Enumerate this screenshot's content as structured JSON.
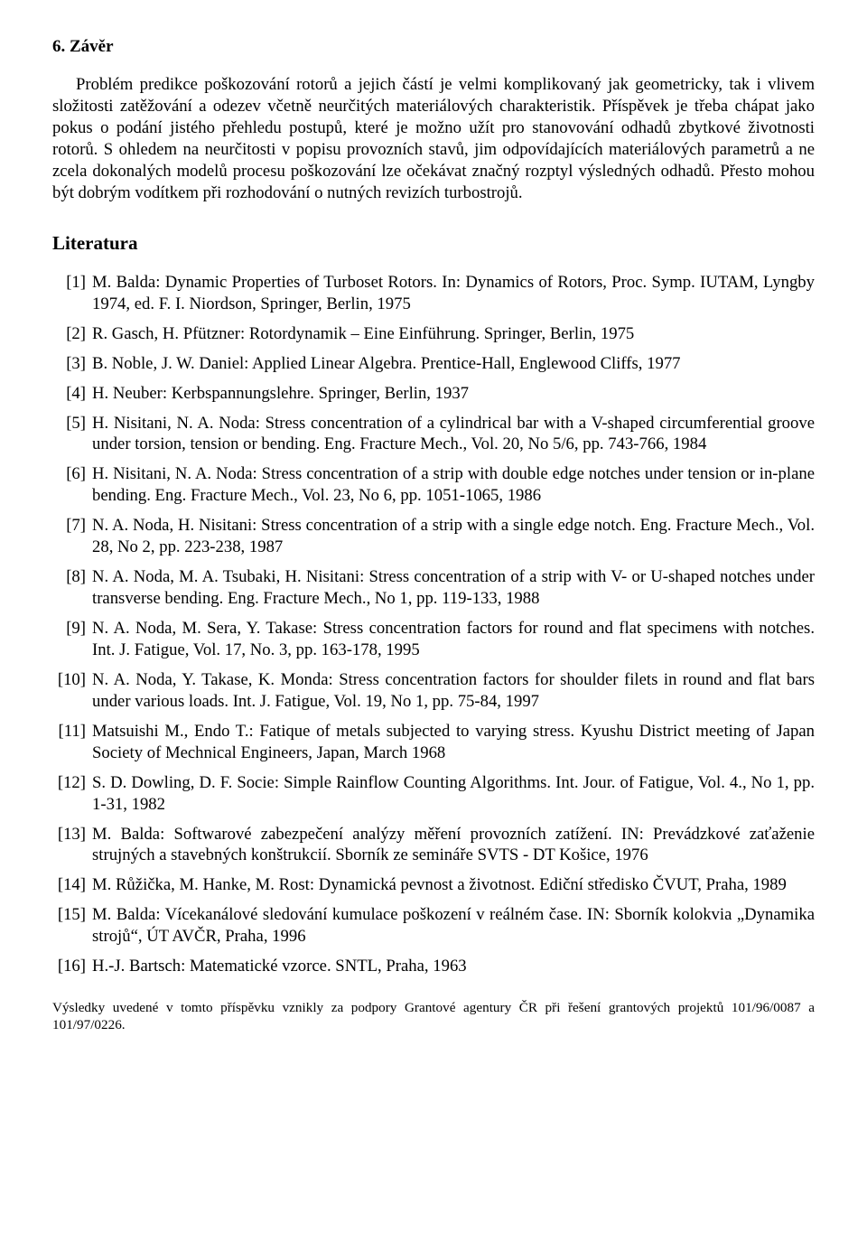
{
  "section": {
    "heading": "6. Závěr",
    "paragraph": "Problém predikce poškozování rotorů a jejich částí je velmi komplikovaný jak geometricky, tak i vlivem složitosti zatěžování a odezev včetně neurčitých materiálových charakteristik. Příspěvek je třeba chápat jako pokus o podání jistého přehledu postupů, které je možno užít pro stanovování odhadů zbytkové životnosti rotorů. S ohledem na neurčitosti v popisu provozních stavů, jim odpovídajících materiálových parametrů a ne zcela dokonalých modelů procesu poškozování lze očekávat značný rozptyl výsledných odhadů. Přesto mohou být dobrým vodítkem při rozhodování o nutných revizích turbostrojů."
  },
  "literature": {
    "heading": "Literatura",
    "items": [
      {
        "n": "[1]",
        "t": "M. Balda: Dynamic Properties of Turboset Rotors. In: Dynamics of Rotors, Proc. Symp. IUTAM, Lyngby 1974, ed. F. I. Niordson, Springer, Berlin, 1975"
      },
      {
        "n": "[2]",
        "t": "R. Gasch, H. Pfützner: Rotordynamik – Eine Einführung. Springer, Berlin, 1975"
      },
      {
        "n": "[3]",
        "t": "B. Noble, J. W. Daniel: Applied Linear Algebra. Prentice-Hall, Englewood Cliffs, 1977"
      },
      {
        "n": "[4]",
        "t": "H. Neuber: Kerbspannungslehre. Springer, Berlin, 1937"
      },
      {
        "n": "[5]",
        "t": "H. Nisitani, N. A. Noda: Stress concentration of a cylindrical bar with a V-shaped circumferential groove under torsion, tension or bending. Eng. Fracture Mech., Vol. 20, No 5/6, pp. 743-766, 1984"
      },
      {
        "n": "[6]",
        "t": "H. Nisitani, N. A. Noda: Stress concentration of a strip with double edge notches under tension or in-plane bending. Eng. Fracture Mech., Vol. 23, No 6, pp. 1051-1065, 1986"
      },
      {
        "n": "[7]",
        "t": "N. A. Noda, H. Nisitani: Stress concentration of a strip with a single edge notch. Eng. Fracture Mech., Vol. 28, No 2, pp. 223-238, 1987"
      },
      {
        "n": "[8]",
        "t": "N. A. Noda, M. A. Tsubaki, H. Nisitani: Stress concentration of a strip with V- or U-shaped notches under transverse bending. Eng. Fracture Mech., No 1, pp. 119-133, 1988"
      },
      {
        "n": "[9]",
        "t": "N. A. Noda, M. Sera, Y. Takase: Stress concentration factors for round and flat specimens with notches. Int. J. Fatigue, Vol. 17, No. 3, pp. 163-178, 1995"
      },
      {
        "n": "[10]",
        "t": "N. A. Noda, Y. Takase, K. Monda: Stress concentration factors for shoulder filets in round and flat bars under various loads. Int. J. Fatigue, Vol. 19, No 1, pp. 75-84, 1997"
      },
      {
        "n": "[11]",
        "t": "Matsuishi M., Endo T.: Fatique of metals subjected to varying stress. Kyushu District meeting of Japan Society of Mechnical Engineers, Japan, March 1968"
      },
      {
        "n": "[12]",
        "t": "S. D. Dowling, D. F. Socie: Simple Rainflow Counting Algorithms. Int. Jour. of Fatigue, Vol. 4., No 1, pp. 1-31, 1982"
      },
      {
        "n": "[13]",
        "t": "M. Balda: Softwarové zabezpečení analýzy měření provozních zatížení. IN: Prevádzkové zaťaženie strujných a stavebných konštrukcií. Sborník ze semináře SVTS - DT Košice, 1976"
      },
      {
        "n": "[14]",
        "t": "M. Růžička, M. Hanke, M. Rost: Dynamická pevnost a životnost. Ediční středisko ČVUT, Praha, 1989"
      },
      {
        "n": "[15]",
        "t": "M. Balda: Vícekanálové sledování kumulace poškození v reálném čase. IN: Sborník kolokvia „Dynamika strojů“, ÚT AVČR, Praha, 1996"
      },
      {
        "n": "[16]",
        "t": "H.-J. Bartsch: Matematické vzorce. SNTL, Praha, 1963"
      }
    ]
  },
  "footnote": "Výsledky uvedené v tomto příspěvku vznikly za podpory Grantové agentury ČR při řešení grantových projektů 101/96/0087 a 101/97/0226."
}
